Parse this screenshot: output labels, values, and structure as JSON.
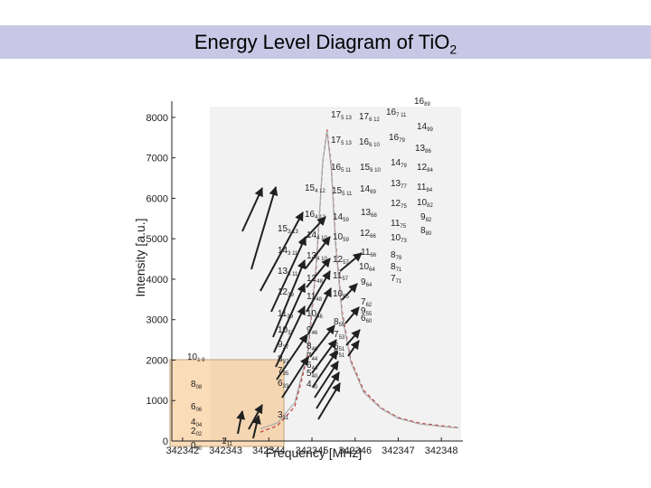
{
  "slide": {
    "title_main": "Energy Level Diagram of TiO",
    "title_sub": "2"
  },
  "chart_data": {
    "type": "line",
    "title": "Energy Level Diagram of TiO2",
    "xlabel": "Frequency [MHz]",
    "ylabel": "Intensity [a.u.]",
    "xlim": [
      342341.75,
      342348.5
    ],
    "ylim": [
      0,
      8400
    ],
    "x_ticks": [
      "342342",
      "342343",
      "342344",
      "342345",
      "342346",
      "342347",
      "342348"
    ],
    "y_ticks": [
      "0",
      "1000",
      "2000",
      "3000",
      "4000",
      "5000",
      "6000",
      "7000",
      "8000"
    ],
    "grid": false,
    "colors": {
      "observed": "#a8a8a8",
      "fit": "#c43c3c",
      "arrows": "#202020",
      "highlight": "#f6c080",
      "highlight_border": "#bfa27a",
      "spectrum_bg": "#f2f2f2"
    },
    "series": [
      {
        "style": "dashed",
        "x": [
          342343.8,
          342344.2,
          342344.6,
          342344.9,
          342345.1,
          342345.25,
          342345.35,
          342345.45,
          342345.55,
          342345.7,
          342345.9,
          342346.2,
          342346.6,
          342347.0,
          342347.5,
          342348.0,
          342348.4
        ],
        "y": [
          220,
          380,
          850,
          2100,
          4300,
          6900,
          7700,
          6800,
          4900,
          3200,
          2000,
          1250,
          820,
          580,
          440,
          380,
          330
        ]
      },
      {
        "style": "solid",
        "x": [
          342343.8,
          342344.2,
          342344.6,
          342344.9,
          342345.1,
          342345.25,
          342345.35,
          342345.45,
          342345.55,
          342345.7,
          342345.9,
          342346.2,
          342346.6,
          342347.0,
          342347.5,
          342348.0,
          342348.4
        ],
        "y": [
          300,
          450,
          950,
          2200,
          4400,
          6900,
          7650,
          6700,
          4800,
          3100,
          1950,
          1200,
          800,
          560,
          420,
          360,
          320
        ]
      }
    ],
    "level_labels": [
      {
        "n": "16",
        "s": "89"
      },
      {
        "n": "17",
        "s": "5 13"
      },
      {
        "n": "17",
        "s": "6 12"
      },
      {
        "n": "16",
        "s": "7 11"
      },
      {
        "n": "14",
        "s": "99"
      },
      {
        "n": "17",
        "s": "5 13"
      },
      {
        "n": "16",
        "s": "6 10"
      },
      {
        "n": "16",
        "s": "79"
      },
      {
        "n": "13",
        "s": "86"
      },
      {
        "n": "16",
        "s": "5 11"
      },
      {
        "n": "15",
        "s": "6 10"
      },
      {
        "n": "14",
        "s": "79"
      },
      {
        "n": "12",
        "s": "84"
      },
      {
        "n": "15",
        "s": "4 12"
      },
      {
        "n": "15",
        "s": "5 11"
      },
      {
        "n": "14",
        "s": "69"
      },
      {
        "n": "13",
        "s": "77"
      },
      {
        "n": "11",
        "s": "84"
      },
      {
        "n": "12",
        "s": "75"
      },
      {
        "n": "10",
        "s": "82"
      },
      {
        "n": "16",
        "s": "4 12"
      },
      {
        "n": "14",
        "s": "59"
      },
      {
        "n": "13",
        "s": "68"
      },
      {
        "n": "11",
        "s": "75"
      },
      {
        "n": "9",
        "s": "82"
      },
      {
        "n": "15",
        "s": "3 13"
      },
      {
        "n": "14",
        "s": "4 10"
      },
      {
        "n": "10",
        "s": "59"
      },
      {
        "n": "12",
        "s": "66"
      },
      {
        "n": "10",
        "s": "73"
      },
      {
        "n": "8",
        "s": "80"
      },
      {
        "n": "14",
        "s": "3 11"
      },
      {
        "n": "13",
        "s": "4 10"
      },
      {
        "n": "11",
        "s": "66"
      },
      {
        "n": "12",
        "s": "57"
      },
      {
        "n": "8",
        "s": "79"
      },
      {
        "n": "10",
        "s": "64"
      },
      {
        "n": "8",
        "s": "71"
      },
      {
        "n": "13",
        "s": "3 11"
      },
      {
        "n": "12",
        "s": "48"
      },
      {
        "n": "11",
        "s": "57"
      },
      {
        "n": "9",
        "s": "64"
      },
      {
        "n": "7",
        "s": "71"
      },
      {
        "n": "12",
        "s": "39"
      },
      {
        "n": "11",
        "s": "48"
      },
      {
        "n": "10",
        "s": "55"
      },
      {
        "n": "9",
        "s": "55"
      },
      {
        "n": "7",
        "s": "62"
      },
      {
        "n": "11",
        "s": "39"
      },
      {
        "n": "10",
        "s": "46"
      },
      {
        "n": "8",
        "s": "55"
      },
      {
        "n": "6",
        "s": "60"
      },
      {
        "n": "10",
        "s": "37"
      },
      {
        "n": "9",
        "s": "46"
      },
      {
        "n": "7",
        "s": "53"
      },
      {
        "n": "9",
        "s": "37"
      },
      {
        "n": "8",
        "s": "46"
      },
      {
        "n": "6",
        "s": "51"
      },
      {
        "n": "10",
        "s": "1 9"
      },
      {
        "n": "8",
        "s": "37"
      },
      {
        "n": "7",
        "s": "44"
      },
      {
        "n": "5",
        "s": "51"
      },
      {
        "n": "7",
        "s": "35"
      },
      {
        "n": "6",
        "s": "44"
      },
      {
        "n": "8",
        "s": "08"
      },
      {
        "n": "6",
        "s": "33"
      },
      {
        "n": "5",
        "s": "40"
      },
      {
        "n": "4",
        "s": "40"
      },
      {
        "n": "6",
        "s": "06"
      },
      {
        "n": "3",
        "s": "31"
      },
      {
        "n": "4",
        "s": "04"
      },
      {
        "n": "2",
        "s": "02"
      },
      {
        "n": "0",
        "s": "00"
      },
      {
        "n": "1",
        "s": "11"
      }
    ]
  }
}
